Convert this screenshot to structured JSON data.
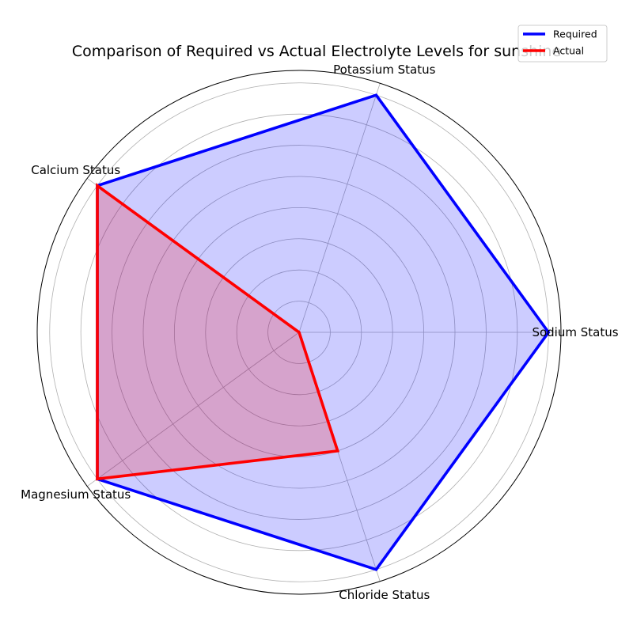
{
  "chart_data": {
    "type": "radar",
    "title": "Comparison of Required vs Actual Electrolyte Levels for sunshine",
    "categories": [
      "Sodium Status",
      "Potassium Status",
      "Calcium Status",
      "Magnesium Status",
      "Chloride Status"
    ],
    "series": [
      {
        "name": "Required",
        "values": [
          1,
          1,
          1,
          1,
          1
        ],
        "color": "#0000ff",
        "fill": "#0000ff",
        "fill_opacity": 0.2
      },
      {
        "name": "Actual",
        "values": [
          0,
          0,
          1,
          1,
          0.5
        ],
        "color": "#ff0000",
        "fill": "#ff0000",
        "fill_opacity": 0.2
      }
    ],
    "rlim": [
      0,
      1.05
    ],
    "grid": true,
    "radial_tick_labels": [],
    "legend_position": "top-right"
  }
}
